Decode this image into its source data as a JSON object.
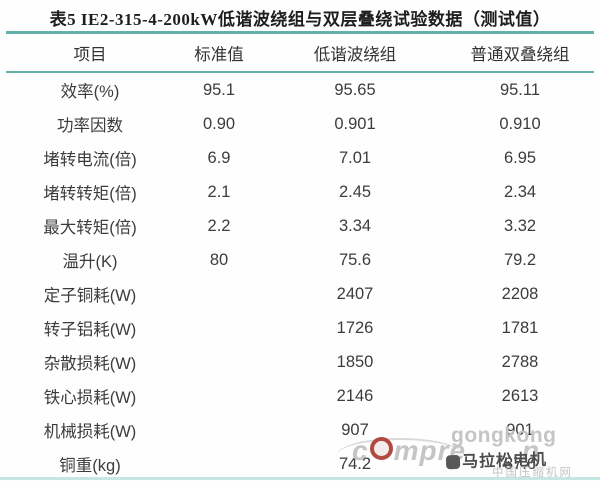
{
  "title": "表5  IE2-315-4-200kW低谐波绕组与双层叠绕试验数据（测试值）",
  "table": {
    "headers": [
      "项目",
      "标准值",
      "低谐波绕组",
      "普通双叠绕组"
    ],
    "rows": [
      {
        "item": "效率(%)",
        "standard": "95.1",
        "low_harmonic": "95.65",
        "double_lap": "95.11"
      },
      {
        "item": "功率因数",
        "standard": "0.90",
        "low_harmonic": "0.901",
        "double_lap": "0.910"
      },
      {
        "item": "堵转电流(倍)",
        "standard": "6.9",
        "low_harmonic": "7.01",
        "double_lap": "6.95"
      },
      {
        "item": "堵转转矩(倍)",
        "standard": "2.1",
        "low_harmonic": "2.45",
        "double_lap": "2.34"
      },
      {
        "item": "最大转矩(倍)",
        "standard": "2.2",
        "low_harmonic": "3.34",
        "double_lap": "3.32"
      },
      {
        "item": "温升(K)",
        "standard": "80",
        "low_harmonic": "75.6",
        "double_lap": "79.2"
      },
      {
        "item": "定子铜耗(W)",
        "standard": "",
        "low_harmonic": "2407",
        "double_lap": "2208"
      },
      {
        "item": "转子铝耗(W)",
        "standard": "",
        "low_harmonic": "1726",
        "double_lap": "1781"
      },
      {
        "item": "杂散损耗(W)",
        "standard": "",
        "low_harmonic": "1850",
        "double_lap": "2788"
      },
      {
        "item": "铁心损耗(W)",
        "standard": "",
        "low_harmonic": "2146",
        "double_lap": "2613"
      },
      {
        "item": "机械损耗(W)",
        "standard": "",
        "low_harmonic": "907",
        "double_lap": "901"
      },
      {
        "item": "铜重(kg)",
        "standard": "",
        "low_harmonic": "74.2",
        "double_lap": "87.6"
      }
    ]
  },
  "watermark": {
    "brand_text": "gongkong",
    "logo_text_prefix": "c",
    "logo_text_suffix": "mpre",
    "logo_text_tail": "n",
    "overlay_text": "马拉松电机",
    "site_text": "中国压缩机网"
  },
  "colors": {
    "rule_teal": "#63b1a9",
    "rule_teal_light": "#c4e7e3",
    "text": "#3c3c3c",
    "watermark_gray": "#c5c5c5",
    "watermark_dark": "#4c4c4c",
    "logo_red": "#b24a42"
  }
}
